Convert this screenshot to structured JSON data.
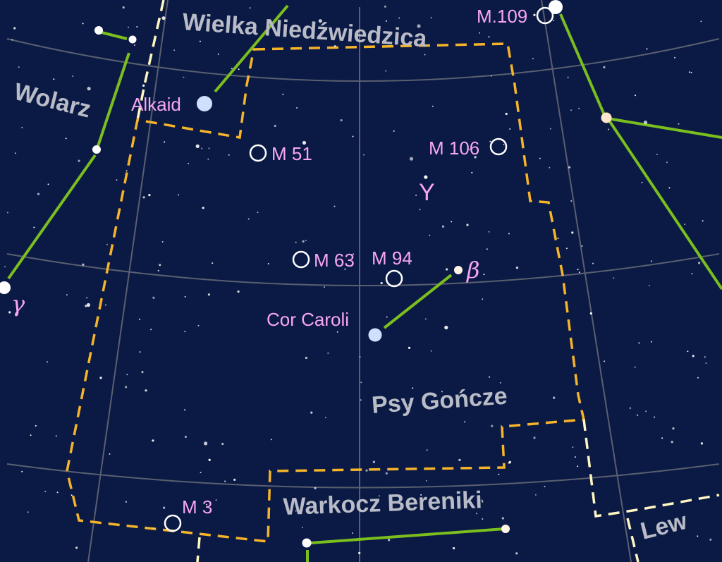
{
  "constellations": {
    "main": "Psy Gończe",
    "ursa_major": "Wielka Niedźwiedzica",
    "bootes": "Wolarz",
    "coma": "Warkocz Bereniki",
    "leo": "Lew"
  },
  "stars": {
    "alkaid": "Alkaid",
    "cor_caroli": "Cor Caroli",
    "beta": "β",
    "gamma": "γ",
    "y": "Y"
  },
  "objects": {
    "m51": "M 51",
    "m106": "M 106",
    "m63": "M 63",
    "m94": "M 94",
    "m3": "M 3",
    "m109": "M.109"
  },
  "colors": {
    "background": "#0b1a44",
    "boundary": "#f5b42a",
    "constellation_line": "#7bbf1e",
    "label": "#f7a6f2",
    "constellation_name": "#b9bcc6"
  }
}
